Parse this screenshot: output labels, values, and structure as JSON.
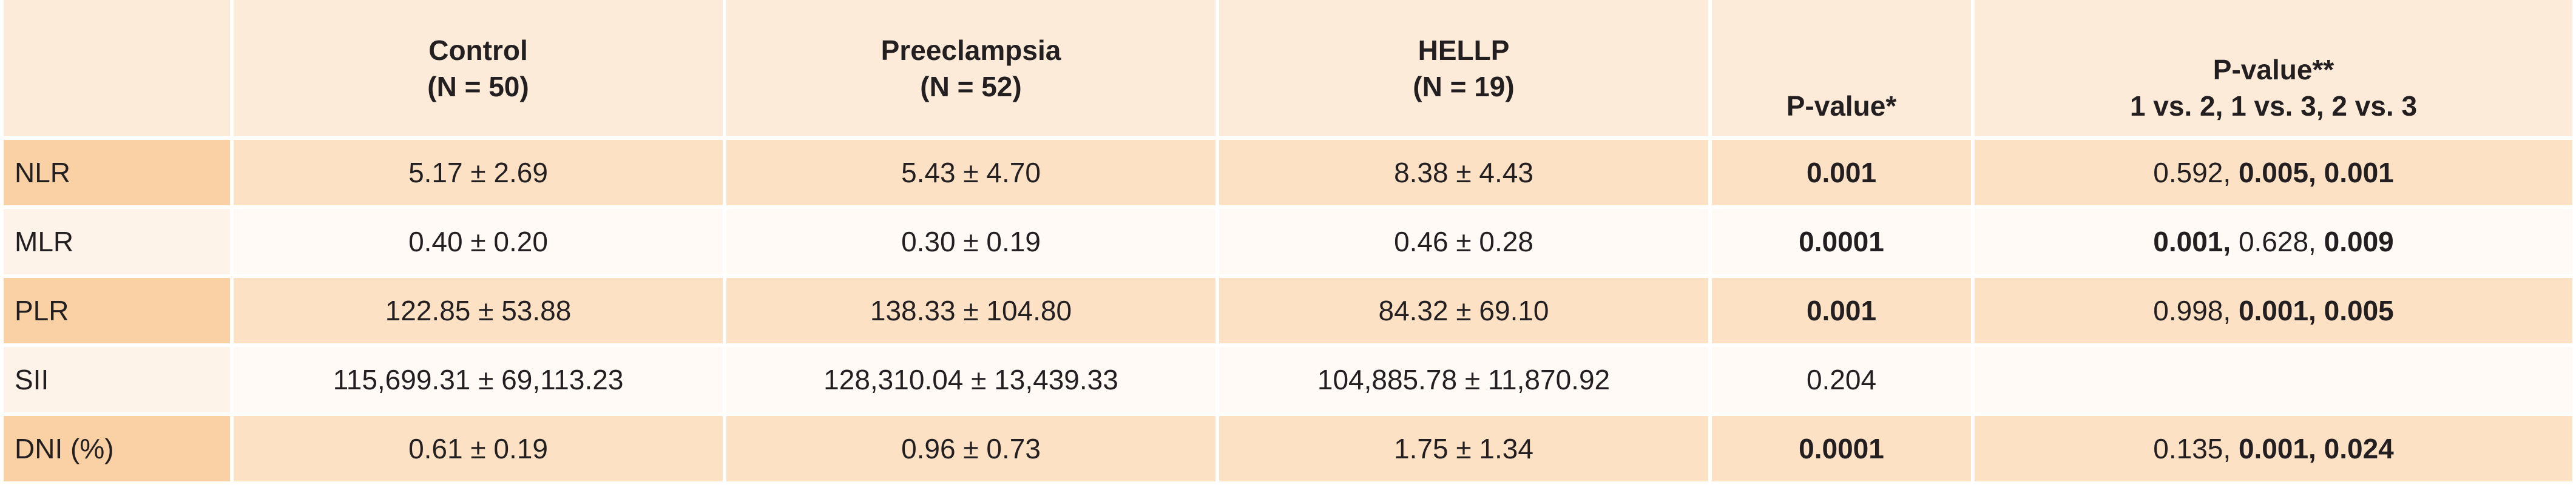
{
  "table": {
    "header": [
      {
        "lines": []
      },
      {
        "lines": [
          "Control",
          "(N = 50)"
        ]
      },
      {
        "lines": [
          "Preeclampsia",
          "(N = 52)"
        ]
      },
      {
        "lines": [
          "HELLP",
          "(N = 19)"
        ]
      },
      {
        "lines": [
          "P-value*"
        ]
      },
      {
        "lines": [
          "P-value**",
          "1 vs. 2, 1 vs. 3, 2 vs. 3"
        ]
      }
    ],
    "rows": [
      {
        "label": "NLR",
        "cells": [
          "5.17 ± 2.69",
          "5.43 ± 4.70",
          "8.38 ± 4.43"
        ],
        "pvalue": {
          "text": "0.001",
          "bold": true
        },
        "pairwise": [
          {
            "text": "0.592, ",
            "bold": false
          },
          {
            "text": "0.005, ",
            "bold": true
          },
          {
            "text": "0.001",
            "bold": true
          }
        ]
      },
      {
        "label": "MLR",
        "cells": [
          "0.40 ± 0.20",
          "0.30 ± 0.19",
          "0.46 ± 0.28"
        ],
        "pvalue": {
          "text": "0.0001",
          "bold": true
        },
        "pairwise": [
          {
            "text": "0.001, ",
            "bold": true
          },
          {
            "text": "0.628, ",
            "bold": false
          },
          {
            "text": "0.009",
            "bold": true
          }
        ]
      },
      {
        "label": "PLR",
        "cells": [
          "122.85 ± 53.88",
          "138.33 ± 104.80",
          "84.32 ± 69.10"
        ],
        "pvalue": {
          "text": "0.001",
          "bold": true
        },
        "pairwise": [
          {
            "text": "0.998, ",
            "bold": false
          },
          {
            "text": "0.001, ",
            "bold": true
          },
          {
            "text": "0.005",
            "bold": true
          }
        ]
      },
      {
        "label": "SII",
        "cells": [
          "115,699.31 ± 69,113.23",
          "128,310.04 ± 13,439.33",
          "104,885.78 ± 11,870.92"
        ],
        "pvalue": {
          "text": "0.204",
          "bold": false
        },
        "pairwise": []
      },
      {
        "label": "DNI (%)",
        "cells": [
          "0.61 ± 0.19",
          "0.96 ± 0.73",
          "1.75 ± 1.34"
        ],
        "pvalue": {
          "text": "0.0001",
          "bold": true
        },
        "pairwise": [
          {
            "text": "0.135, ",
            "bold": false
          },
          {
            "text": "0.001, ",
            "bold": true
          },
          {
            "text": "0.024",
            "bold": true
          }
        ]
      }
    ]
  }
}
